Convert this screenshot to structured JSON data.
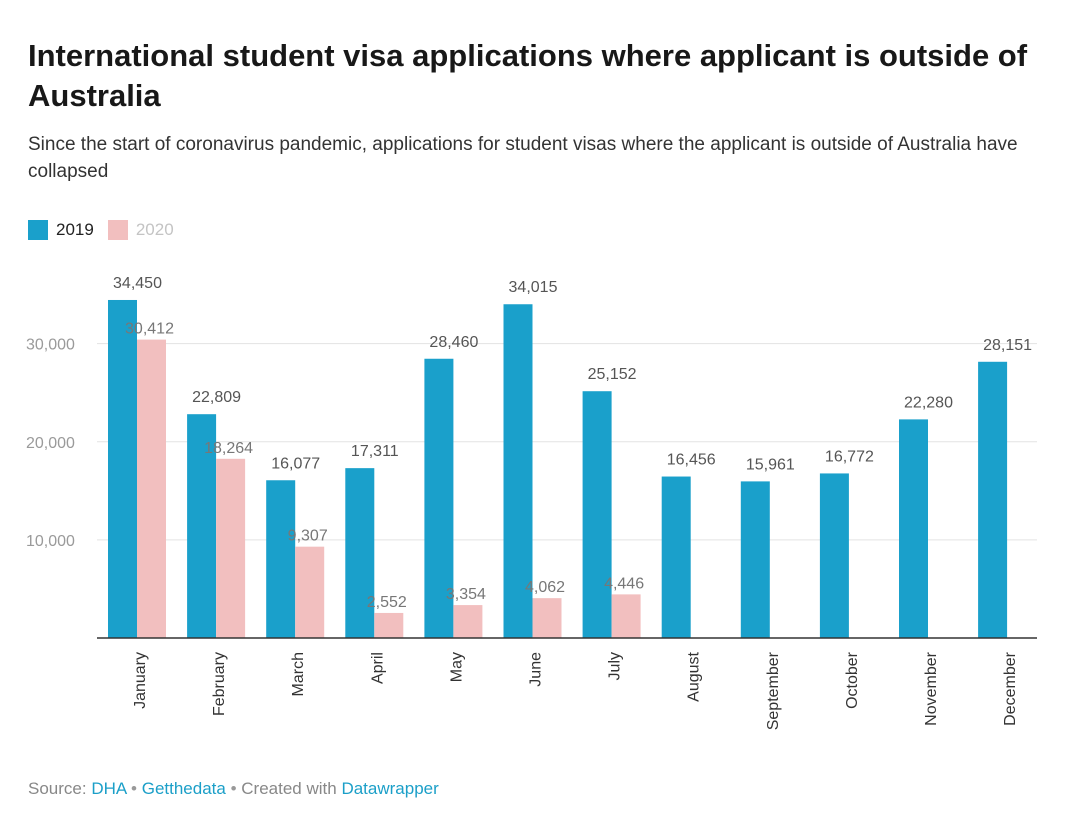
{
  "header": {
    "title": "International student visa applications where applicant is outside of Australia",
    "subtitle": "Since the start of coronavirus pandemic, applications for student visas where the applicant is outside of Australia have collapsed"
  },
  "legend": {
    "items": [
      {
        "label": "2019",
        "color": "#1aa0cb",
        "text_color": "#222222"
      },
      {
        "label": "2020",
        "color": "#f2bfbf",
        "text_color": "#c4c4c4"
      }
    ]
  },
  "footer": {
    "source_prefix": "Source:",
    "source_1": "DHA",
    "separator_1": "•",
    "source_2": "Getthedata",
    "separator_2": "•",
    "created_text": "Created with",
    "tool": "Datawrapper"
  },
  "chart_data": {
    "type": "bar",
    "title": "International student visa applications where applicant is outside of Australia",
    "subtitle": "Since the start of coronavirus pandemic, applications for student visas where the applicant is outside of Australia have collapsed",
    "categories": [
      "January",
      "February",
      "March",
      "April",
      "May",
      "June",
      "July",
      "August",
      "September",
      "October",
      "November",
      "December"
    ],
    "series": [
      {
        "name": "2019",
        "color": "#1aa0cb",
        "values": [
          34450,
          22809,
          16077,
          17311,
          28460,
          34015,
          25152,
          16456,
          15961,
          16772,
          22280,
          28151
        ],
        "labels": [
          "34,450",
          "22,809",
          "16,077",
          "17,311",
          "28,460",
          "34,015",
          "25,152",
          "16,456",
          "15,961",
          "16,772",
          "22,280",
          "28,151"
        ]
      },
      {
        "name": "2020",
        "color": "#f2bfbf",
        "values": [
          30412,
          18264,
          9307,
          2552,
          3354,
          4062,
          4446,
          null,
          null,
          null,
          null,
          null
        ],
        "labels": [
          "30,412",
          "18,264",
          "9,307",
          "2,552",
          "3,354",
          "4,062",
          "4,446",
          "",
          "",
          "",
          "",
          ""
        ]
      }
    ],
    "y_ticks": [
      10000,
      20000,
      30000
    ],
    "y_tick_labels": [
      "10,000",
      "20,000",
      "30,000"
    ],
    "ylim": [
      0,
      36000
    ],
    "grid": true,
    "legend_position": "top-left"
  }
}
